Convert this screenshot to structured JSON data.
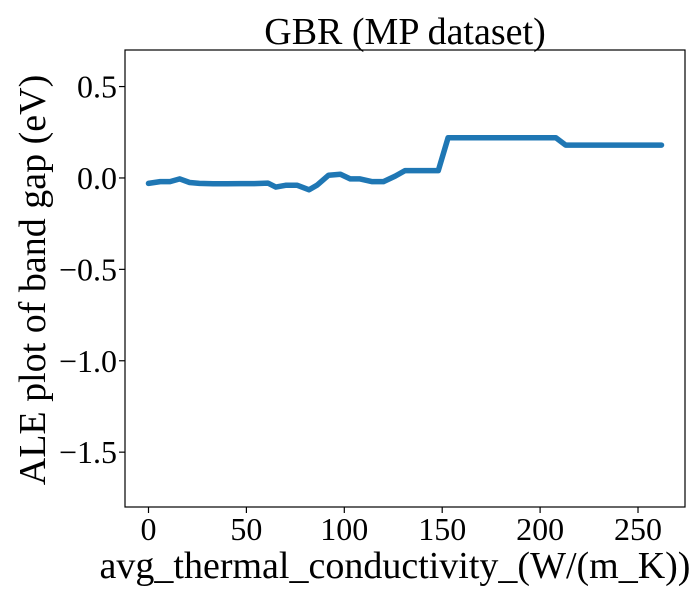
{
  "chart_data": {
    "type": "line",
    "title": "GBR (MP dataset)",
    "xlabel": "avg_thermal_conductivity_(W/(m_K))",
    "ylabel": "ALE plot of band gap (eV)",
    "xlim": [
      -12,
      274
    ],
    "ylim": [
      -1.8,
      0.7
    ],
    "x_ticks": [
      0,
      50,
      100,
      150,
      200,
      250
    ],
    "x_tick_labels": [
      "0",
      "50",
      "100",
      "150",
      "200",
      "250"
    ],
    "y_ticks": [
      0.5,
      0.0,
      -0.5,
      -1.0,
      -1.5
    ],
    "y_tick_labels": [
      "0.5",
      "0.0",
      "−0.5",
      "−1.0",
      "−1.5"
    ],
    "grid": false,
    "series": [
      {
        "color": "#1f77b4",
        "x": [
          0,
          6,
          11,
          16,
          21,
          26,
          33,
          40,
          47,
          54,
          61,
          65,
          70,
          76,
          82,
          86,
          92,
          98,
          103,
          108,
          114,
          120,
          126,
          131,
          137,
          148,
          153,
          160,
          170,
          180,
          190,
          200,
          208,
          213,
          220,
          230,
          240,
          250,
          262
        ],
        "y": [
          -0.03,
          -0.02,
          -0.02,
          -0.005,
          -0.025,
          -0.03,
          -0.032,
          -0.032,
          -0.031,
          -0.031,
          -0.028,
          -0.05,
          -0.04,
          -0.04,
          -0.065,
          -0.04,
          0.015,
          0.02,
          -0.005,
          -0.005,
          -0.02,
          -0.02,
          0.01,
          0.04,
          0.04,
          0.04,
          0.22,
          0.22,
          0.22,
          0.22,
          0.22,
          0.22,
          0.22,
          0.18,
          0.18,
          0.18,
          0.18,
          0.18,
          0.18
        ]
      }
    ]
  }
}
